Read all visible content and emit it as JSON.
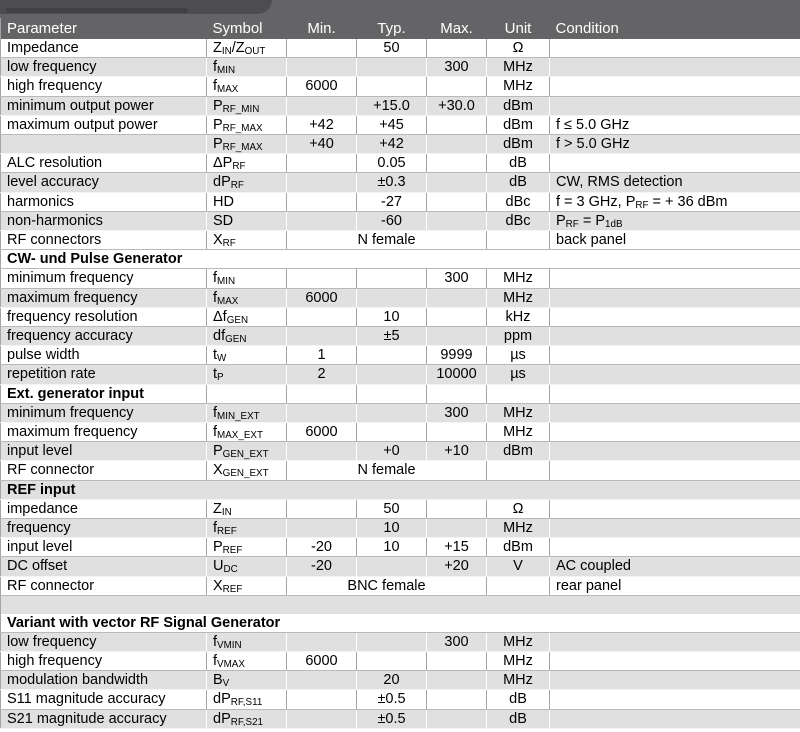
{
  "banner": {
    "band_color": "#646467",
    "tab_color": "#4d4d50"
  },
  "colors": {
    "stripe": "#e0e0e0",
    "header_bg": "#646467",
    "header_text": "#ffffff",
    "grid_on_white": "#a4a4a4",
    "grid_on_gray": "#ffffff"
  },
  "header": {
    "columns": [
      {
        "label": "Parameter",
        "align": "left"
      },
      {
        "label": "Symbol",
        "align": "left"
      },
      {
        "label": "Min.",
        "align": "center"
      },
      {
        "label": "Typ.",
        "align": "center"
      },
      {
        "label": "Max.",
        "align": "center"
      },
      {
        "label": "Unit",
        "align": "center"
      },
      {
        "label": "Condition",
        "align": "left"
      }
    ]
  },
  "table": {
    "rows": [
      {
        "type": "data",
        "shade": "white",
        "param": "Impedance",
        "symbol": [
          {
            "t": "Z"
          },
          {
            "t": "IN",
            "sub": true
          },
          {
            "t": "/Z"
          },
          {
            "t": "OUT",
            "sub": true
          }
        ],
        "min": "",
        "typ": "50",
        "max": "",
        "unit": "Ω",
        "condition": []
      },
      {
        "type": "data",
        "shade": "gray",
        "param": "low frequency",
        "symbol": [
          {
            "t": "f"
          },
          {
            "t": "MIN",
            "sub": true
          }
        ],
        "min": "",
        "typ": "",
        "max": "300",
        "unit": "MHz",
        "condition": []
      },
      {
        "type": "data",
        "shade": "white",
        "param": "high frequency",
        "symbol": [
          {
            "t": "f"
          },
          {
            "t": "MAX",
            "sub": true
          }
        ],
        "min": "6000",
        "typ": "",
        "max": "",
        "unit": "MHz",
        "condition": []
      },
      {
        "type": "data",
        "shade": "gray",
        "param": "minimum output power",
        "symbol": [
          {
            "t": "P"
          },
          {
            "t": "RF_MIN",
            "sub": true
          }
        ],
        "min": "",
        "typ": "+15.0",
        "max": "+30.0",
        "unit": "dBm",
        "condition": []
      },
      {
        "type": "data",
        "shade": "white",
        "param": "maximum output power",
        "symbol": [
          {
            "t": "P"
          },
          {
            "t": "RF_MAX",
            "sub": true
          }
        ],
        "min": "+42",
        "typ": "+45",
        "max": "",
        "unit": "dBm",
        "condition": [
          {
            "t": "f ≤ 5.0 GHz"
          }
        ]
      },
      {
        "type": "data",
        "shade": "gray",
        "param": "",
        "symbol": [
          {
            "t": "P"
          },
          {
            "t": "RF_MAX",
            "sub": true
          }
        ],
        "min": "+40",
        "typ": "+42",
        "max": "",
        "unit": "dBm",
        "condition": [
          {
            "t": "f > 5.0 GHz"
          }
        ]
      },
      {
        "type": "data",
        "shade": "white",
        "param": "ALC resolution",
        "symbol": [
          {
            "t": "ΔP"
          },
          {
            "t": "RF",
            "sub": true
          }
        ],
        "min": "",
        "typ": "0.05",
        "max": "",
        "unit": "dB",
        "condition": []
      },
      {
        "type": "data",
        "shade": "gray",
        "param": "level accuracy",
        "symbol": [
          {
            "t": "dP"
          },
          {
            "t": "RF",
            "sub": true
          }
        ],
        "min": "",
        "typ": "±0.3",
        "max": "",
        "unit": "dB",
        "condition": [
          {
            "t": "CW, RMS detection"
          }
        ]
      },
      {
        "type": "data",
        "shade": "white",
        "param": "harmonics",
        "symbol": [
          {
            "t": "HD"
          }
        ],
        "min": "",
        "typ": "-27",
        "max": "",
        "unit": "dBc",
        "condition": [
          {
            "t": "f = 3 GHz, P"
          },
          {
            "t": "RF",
            "sub": true
          },
          {
            "t": " = + 36 dBm"
          }
        ]
      },
      {
        "type": "data",
        "shade": "gray",
        "param": "non-harmonics",
        "symbol": [
          {
            "t": "SD"
          }
        ],
        "min": "",
        "typ": "-60",
        "max": "",
        "unit": "dBc",
        "condition": [
          {
            "t": "P"
          },
          {
            "t": "RF",
            "sub": true
          },
          {
            "t": " = P"
          },
          {
            "t": "1dB",
            "sub": true
          }
        ]
      },
      {
        "type": "data",
        "shade": "white",
        "param": "RF connectors",
        "symbol": [
          {
            "t": "X"
          },
          {
            "t": "RF",
            "sub": true
          }
        ],
        "span": "N female",
        "unit": "",
        "condition": [
          {
            "t": "back panel"
          }
        ]
      },
      {
        "type": "section",
        "shade": "white",
        "bordered": false,
        "label": "CW- und Pulse Generator"
      },
      {
        "type": "data",
        "shade": "white",
        "param": "minimum frequency",
        "symbol": [
          {
            "t": "f"
          },
          {
            "t": "MIN",
            "sub": true
          }
        ],
        "min": "",
        "typ": "",
        "max": "300",
        "unit": "MHz",
        "condition": []
      },
      {
        "type": "data",
        "shade": "gray",
        "param": "maximum frequency",
        "symbol": [
          {
            "t": "f"
          },
          {
            "t": "MAX",
            "sub": true
          }
        ],
        "min": "6000",
        "typ": "",
        "max": "",
        "unit": "MHz",
        "condition": []
      },
      {
        "type": "data",
        "shade": "white",
        "param": "frequency resolution",
        "symbol": [
          {
            "t": "Δf"
          },
          {
            "t": "GEN",
            "sub": true
          }
        ],
        "min": "",
        "typ": "10",
        "max": "",
        "unit": "kHz",
        "condition": []
      },
      {
        "type": "data",
        "shade": "gray",
        "param": "frequency accuracy",
        "symbol": [
          {
            "t": "df"
          },
          {
            "t": "GEN",
            "sub": true
          }
        ],
        "min": "",
        "typ": "±5",
        "max": "",
        "unit": "ppm",
        "condition": []
      },
      {
        "type": "data",
        "shade": "white",
        "param": "pulse width",
        "symbol": [
          {
            "t": "t"
          },
          {
            "t": "W",
            "sub": true
          }
        ],
        "min": "1",
        "typ": "",
        "max": "9999",
        "unit": "µs",
        "condition": []
      },
      {
        "type": "data",
        "shade": "gray",
        "param": "repetition rate",
        "symbol": [
          {
            "t": "t"
          },
          {
            "t": "P",
            "sub": true
          }
        ],
        "min": "2",
        "typ": "",
        "max": "10000",
        "unit": "µs",
        "condition": []
      },
      {
        "type": "section",
        "shade": "white",
        "bordered": true,
        "label": "Ext. generator input"
      },
      {
        "type": "data",
        "shade": "gray",
        "param": "minimum frequency",
        "symbol": [
          {
            "t": "f"
          },
          {
            "t": "MIN_EXT",
            "sub": true
          }
        ],
        "min": "",
        "typ": "",
        "max": "300",
        "unit": "MHz",
        "condition": []
      },
      {
        "type": "data",
        "shade": "white",
        "param": "maximum frequency",
        "symbol": [
          {
            "t": "f"
          },
          {
            "t": "MAX_EXT",
            "sub": true
          }
        ],
        "min": "6000",
        "typ": "",
        "max": "",
        "unit": "MHz",
        "condition": []
      },
      {
        "type": "data",
        "shade": "gray",
        "param": "input level",
        "symbol": [
          {
            "t": "P"
          },
          {
            "t": "GEN_EXT",
            "sub": true
          }
        ],
        "min": "",
        "typ": "+0",
        "max": "+10",
        "unit": "dBm",
        "condition": []
      },
      {
        "type": "data",
        "shade": "white",
        "param": "RF connector",
        "symbol": [
          {
            "t": "X"
          },
          {
            "t": "GEN_EXT",
            "sub": true
          }
        ],
        "span": "N female",
        "unit": "",
        "condition": []
      },
      {
        "type": "section",
        "shade": "gray",
        "bordered": false,
        "label": "REF input"
      },
      {
        "type": "data",
        "shade": "white",
        "param": "impedance",
        "symbol": [
          {
            "t": "Z"
          },
          {
            "t": "IN",
            "sub": true
          }
        ],
        "min": "",
        "typ": "50",
        "max": "",
        "unit": "Ω",
        "condition": []
      },
      {
        "type": "data",
        "shade": "gray",
        "param": "frequency",
        "symbol": [
          {
            "t": "f"
          },
          {
            "t": "REF",
            "sub": true
          }
        ],
        "min": "",
        "typ": "10",
        "max": "",
        "unit": "MHz",
        "condition": []
      },
      {
        "type": "data",
        "shade": "white",
        "param": "input level",
        "symbol": [
          {
            "t": "P"
          },
          {
            "t": "REF",
            "sub": true
          }
        ],
        "min": "-20",
        "typ": "10",
        "max": "+15",
        "unit": "dBm",
        "condition": []
      },
      {
        "type": "data",
        "shade": "gray",
        "param": "DC offset",
        "symbol": [
          {
            "t": "U"
          },
          {
            "t": "DC",
            "sub": true
          }
        ],
        "min": "-20",
        "typ": "",
        "max": "+20",
        "unit": "V",
        "condition": [
          {
            "t": "AC coupled"
          }
        ]
      },
      {
        "type": "data",
        "shade": "white",
        "param": "RF connector",
        "symbol": [
          {
            "t": "X"
          },
          {
            "t": "REF",
            "sub": true
          }
        ],
        "span": "BNC female",
        "unit": "",
        "condition": [
          {
            "t": "rear panel"
          }
        ]
      },
      {
        "type": "gap",
        "shade": "gray"
      },
      {
        "type": "section",
        "shade": "white",
        "bordered": false,
        "label": "Variant with vector RF Signal Generator"
      },
      {
        "type": "data",
        "shade": "gray",
        "param": "low frequency",
        "symbol": [
          {
            "t": "f"
          },
          {
            "t": "VMIN",
            "sub": true
          }
        ],
        "min": "",
        "typ": "",
        "max": "300",
        "unit": "MHz",
        "condition": []
      },
      {
        "type": "data",
        "shade": "white",
        "param": "high frequency",
        "symbol": [
          {
            "t": "f"
          },
          {
            "t": "VMAX",
            "sub": true
          }
        ],
        "min": "6000",
        "typ": "",
        "max": "",
        "unit": "MHz",
        "condition": []
      },
      {
        "type": "data",
        "shade": "gray",
        "param": "modulation bandwidth",
        "symbol": [
          {
            "t": "B"
          },
          {
            "t": "V",
            "sub": true
          }
        ],
        "min": "",
        "typ": "20",
        "max": "",
        "unit": "MHz",
        "condition": []
      },
      {
        "type": "data",
        "shade": "white",
        "param": "S11 magnitude accuracy",
        "symbol": [
          {
            "t": "dP"
          },
          {
            "t": "RF,S11",
            "sub": true
          }
        ],
        "min": "",
        "typ": "±0.5",
        "max": "",
        "unit": "dB",
        "condition": []
      },
      {
        "type": "data",
        "shade": "gray",
        "param": "S21 magnitude accuracy",
        "symbol": [
          {
            "t": "dP"
          },
          {
            "t": "RF,S21",
            "sub": true
          }
        ],
        "min": "",
        "typ": "±0.5",
        "max": "",
        "unit": "dB",
        "condition": []
      }
    ]
  }
}
